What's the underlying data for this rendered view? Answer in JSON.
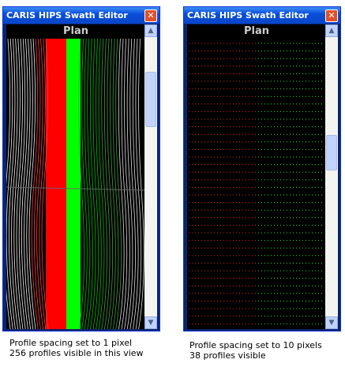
{
  "windows": [
    {
      "title": "CARIS HIPS Swath Editor",
      "pane_title": "Plan",
      "caption": [
        "Profile spacing set to 1 pixel",
        "256 profiles visible in this view"
      ]
    },
    {
      "title": "CARIS HIPS Swath Editor",
      "pane_title": "Plan",
      "caption": [
        "Profile spacing set to 10 pixels",
        "38 profiles visible"
      ]
    }
  ]
}
